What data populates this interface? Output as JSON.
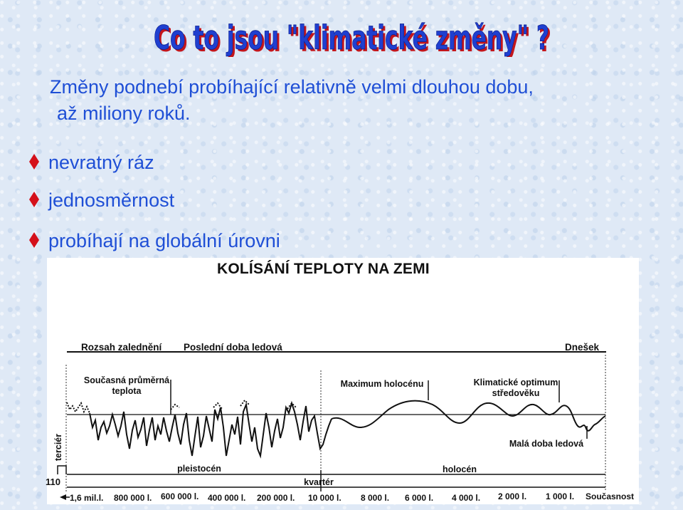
{
  "slide": {
    "title": "Co to jsou \"klimatické změny\" ?",
    "intro_line1": "Změny podnebí probíhající relativně velmi dlouhou dobu,",
    "intro_line2": "až miliony roků.",
    "bullets": [
      "nevratný ráz",
      "jednosměrnost",
      "probíhají na globální úrovni"
    ],
    "colors": {
      "text": "#1f4fd6",
      "title_fill": "#1f3fd0",
      "title_shadow": "#c4161c",
      "bullet": "#d4101a"
    }
  },
  "chart": {
    "title": "KOLÍSÁNÍ TEPLOTY NA ZEMI",
    "top_labels": [
      "Rozsah zalednění",
      "Poslední doba ledová",
      "Dnešek"
    ],
    "annotations": {
      "current_avg_line1": "Současná průměrná",
      "current_avg_line2": "teplota",
      "holocene_max": "Maximum holocénu",
      "medieval_line1": "Klimatické optimum",
      "medieval_line2": "středověku",
      "little_ice_age": "Malá doba ledová",
      "tertiary": "terciér",
      "pleistocene": "pleistocén",
      "holocene": "holocén",
      "quaternary": "kvartér",
      "axis_start": "110"
    },
    "time_ticks": [
      "1,6 mil.l.",
      "800 000 l.",
      "600 000 l.",
      "400 000 l.",
      "200 000 l.",
      "10 000 l.",
      "8 000 l.",
      "6 000 l.",
      "4 000 l.",
      "2 000 l.",
      "1 000 l.",
      "Současnost"
    ]
  },
  "chart_data": {
    "type": "line",
    "title": "KOLÍSÁNÍ TEPLOTY NA ZEMI",
    "x": [
      "1,6 mil.l.",
      "800 000 l.",
      "600 000 l.",
      "400 000 l.",
      "200 000 l.",
      "10 000 l.",
      "8 000 l.",
      "6 000 l.",
      "4 000 l.",
      "2 000 l.",
      "1 000 l.",
      "Současnost"
    ],
    "xlabel": "",
    "ylabel": "",
    "grid": false,
    "legend": "none"
  }
}
